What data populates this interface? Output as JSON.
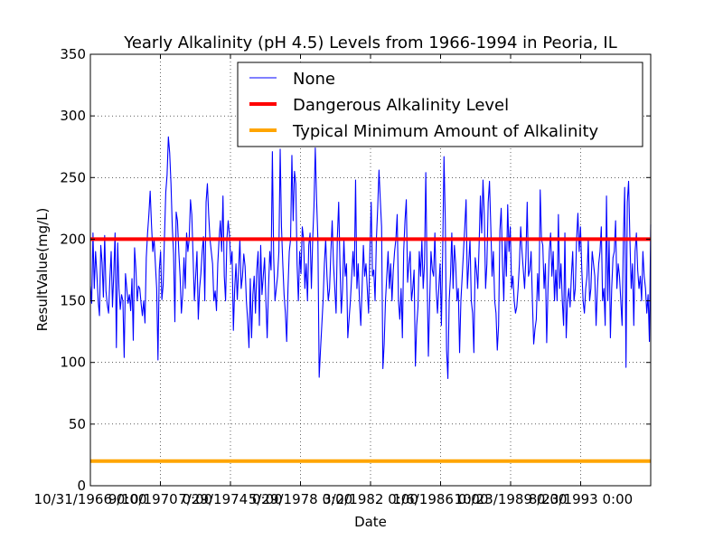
{
  "chart_data": {
    "type": "line",
    "title": "Yearly Alkalinity (pH 4.5) Levels from 1966-1994 in Peoria, IL",
    "xlabel": "Date",
    "ylabel": "ResultValue(mg/L)",
    "ylim": [
      0,
      350
    ],
    "yticks": [
      0,
      50,
      100,
      150,
      200,
      250,
      300,
      350
    ],
    "x_tick_labels": [
      "10/31/1966 0:00",
      "9/10/1970 0:00",
      "7/29/1974 0:00",
      "5/29/1978 0:00",
      "3/2/1982 0:00",
      "1/6/1986 0:00",
      "10/23/1989 0:00",
      "8/23/1993 0:00"
    ],
    "grid": true,
    "legend_position": "top-right",
    "series": [
      {
        "name": "None",
        "color": "#0000ff",
        "values": [
          162,
          148,
          205,
          160,
          190,
          172,
          150,
          138,
          195,
          181,
          153,
          203,
          158,
          147,
          140,
          168,
          190,
          145,
          172,
          205,
          112,
          197,
          160,
          143,
          155,
          150,
          104,
          172,
          160,
          148,
          155,
          142,
          168,
          118,
          193,
          176,
          150,
          162,
          160,
          148,
          138,
          150,
          132,
          185,
          205,
          220,
          239,
          212,
          190,
          201,
          180,
          160,
          102,
          175,
          190,
          151,
          163,
          202,
          238,
          252,
          283,
          270,
          245,
          210,
          188,
          133,
          222,
          215,
          190,
          170,
          140,
          155,
          185,
          160,
          205,
          190,
          200,
          232,
          220,
          186,
          150,
          170,
          190,
          135,
          160,
          172,
          190,
          202,
          150,
          230,
          245,
          220,
          200,
          190,
          180,
          150,
          158,
          142,
          180,
          200,
          215,
          190,
          235,
          170,
          150,
          200,
          215,
          203,
          180,
          190,
          126,
          160,
          180,
          151,
          175,
          200,
          160,
          170,
          188,
          178,
          150,
          134,
          112,
          168,
          120,
          155,
          170,
          140,
          175,
          190,
          130,
          195,
          155,
          170,
          185,
          150,
          120,
          160,
          190,
          175,
          271,
          185,
          150,
          160,
          170,
          190,
          273,
          210,
          180,
          155,
          140,
          117,
          160,
          190,
          200,
          268,
          215,
          255,
          245,
          180,
          150,
          190,
          172,
          210,
          200,
          160,
          180,
          150,
          195,
          205,
          160,
          200,
          227,
          274,
          232,
          200,
          88,
          110,
          130,
          150,
          180,
          200,
          170,
          150,
          160,
          190,
          215,
          180,
          160,
          140,
          202,
          230,
          180,
          140,
          160,
          200,
          170,
          180,
          120,
          135,
          150,
          170,
          190,
          170,
          248,
          160,
          180,
          150,
          130,
          160,
          195,
          170,
          180,
          160,
          140,
          190,
          230,
          170,
          175,
          150,
          200,
          225,
          256,
          232,
          210,
          95,
          115,
          150,
          170,
          190,
          160,
          180,
          150,
          175,
          190,
          200,
          220,
          150,
          135,
          160,
          120,
          190,
          215,
          232,
          165,
          180,
          190,
          150,
          160,
          175,
          97,
          130,
          145,
          190,
          170,
          200,
          160,
          180,
          254,
          170,
          105,
          150,
          190,
          175,
          170,
          205,
          160,
          140,
          160,
          180,
          130,
          190,
          267,
          215,
          110,
          87,
          150,
          170,
          205,
          160,
          195,
          180,
          150,
          160,
          108,
          150,
          170,
          190,
          210,
          232,
          160,
          180,
          200,
          150,
          140,
          108,
          185,
          175,
          160,
          195,
          235,
          205,
          248,
          220,
          160,
          180,
          230,
          247,
          210,
          170,
          190,
          150,
          140,
          110,
          130,
          207,
          225,
          180,
          150,
          200,
          170,
          228,
          190,
          210,
          160,
          170,
          150,
          140,
          145,
          160,
          180,
          210,
          190,
          175,
          160,
          185,
          230,
          170,
          175,
          190,
          150,
          115,
          127,
          135,
          172,
          150,
          240,
          200,
          195,
          160,
          180,
          116,
          160,
          190,
          205,
          170,
          190,
          150,
          175,
          150,
          220,
          160,
          180,
          150,
          130,
          205,
          120,
          150,
          160,
          145,
          170,
          190,
          150,
          160,
          200,
          221,
          190,
          210,
          175,
          150,
          140,
          160,
          170,
          200,
          150,
          160,
          190,
          180,
          170,
          130,
          160,
          180,
          190,
          210,
          150,
          160,
          130,
          235,
          150,
          200,
          120,
          160,
          185,
          190,
          215,
          160,
          180,
          170,
          150,
          130,
          200,
          242,
          96,
          230,
          247,
          200,
          160,
          180,
          130,
          190,
          205,
          175,
          160,
          170,
          150,
          190,
          170,
          160,
          140,
          155,
          117,
          212
        ]
      },
      {
        "name": "Dangerous Alkalinity Level",
        "color": "#ff0000",
        "value": 200
      },
      {
        "name": "Typical Minimum Amount of Alkalinity",
        "color": "#ffa500",
        "value": 20
      }
    ]
  }
}
